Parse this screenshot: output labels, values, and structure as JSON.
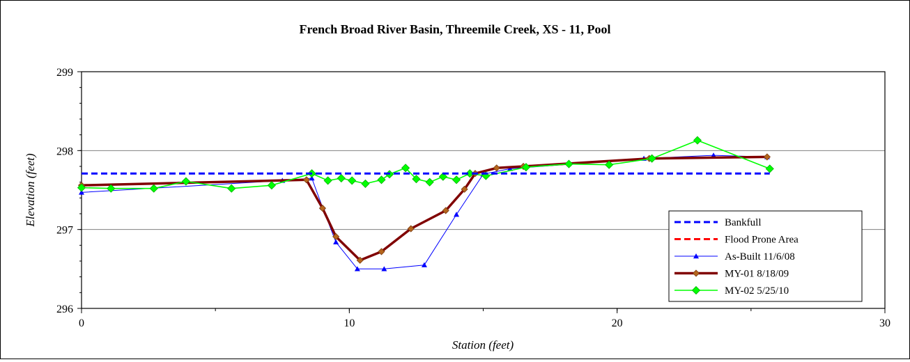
{
  "chart_data": {
    "type": "line",
    "title": "French Broad River Basin, Threemile Creek, XS - 11, Pool",
    "xlabel": "Station (feet)",
    "ylabel": "Elevation (feet)",
    "xlim": [
      0,
      30
    ],
    "ylim": [
      296,
      299
    ],
    "x_ticks": [
      "0",
      "10",
      "20",
      "30"
    ],
    "y_ticks": [
      "296",
      "297",
      "298",
      "299"
    ],
    "grid": "horizontal",
    "legend_position": "bottom-right",
    "series": [
      {
        "name": "Bankfull",
        "color": "#0000ff",
        "style": "dashed",
        "x": [
          0,
          25.7
        ],
        "y": [
          297.71,
          297.71
        ]
      },
      {
        "name": "Flood Prone Area",
        "color": "#ff0000",
        "style": "dashed",
        "x": [],
        "y": []
      },
      {
        "name": "As-Built 11/6/08",
        "color": "#0000ff",
        "style": "thin-triangle",
        "x": [
          0,
          7.5,
          8.6,
          9.0,
          9.5,
          10.3,
          11.3,
          12.8,
          14.0,
          15.0,
          16.0,
          21.0,
          23.6,
          25.6
        ],
        "y": [
          297.47,
          297.62,
          297.65,
          297.28,
          296.84,
          296.5,
          296.5,
          296.55,
          297.19,
          297.7,
          297.77,
          297.9,
          297.94,
          297.92
        ]
      },
      {
        "name": "MY-01 8/18/09",
        "color": "#800000",
        "style": "thick-diamond",
        "x": [
          0,
          8.4,
          9.0,
          9.5,
          10.4,
          11.2,
          12.3,
          13.6,
          14.3,
          14.7,
          15.5,
          16.5,
          21.2,
          25.6
        ],
        "y": [
          297.56,
          297.63,
          297.27,
          296.91,
          296.61,
          296.72,
          297.01,
          297.24,
          297.51,
          297.71,
          297.78,
          297.8,
          297.9,
          297.92
        ]
      },
      {
        "name": "MY-02 5/25/10",
        "color": "#00ff00",
        "style": "diamond",
        "x": [
          0,
          1.1,
          2.7,
          3.9,
          5.6,
          7.1,
          8.6,
          9.2,
          9.7,
          10.1,
          10.6,
          11.2,
          11.5,
          12.1,
          12.5,
          13.0,
          13.5,
          14.0,
          14.5,
          15.1,
          16.6,
          18.2,
          19.7,
          21.3,
          23.0,
          25.7
        ],
        "y": [
          297.53,
          297.52,
          297.52,
          297.61,
          297.52,
          297.56,
          297.71,
          297.62,
          297.65,
          297.62,
          297.58,
          297.63,
          297.7,
          297.78,
          297.64,
          297.6,
          297.67,
          297.63,
          297.71,
          297.68,
          297.79,
          297.83,
          297.82,
          297.9,
          298.13,
          297.77
        ]
      }
    ]
  }
}
